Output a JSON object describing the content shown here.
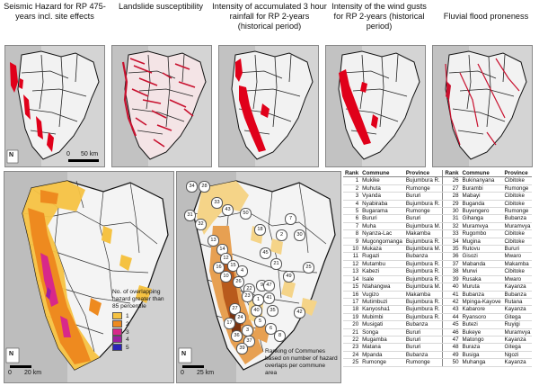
{
  "titles": {
    "seismic": "Seismic Hazard for RP 475-years incl. site effects",
    "landslide": "Landslide susceptibility",
    "rainfall": "Intensity of accumulated 3 hour rainfall for RP 2-years (historical period)",
    "wind": "Intensity of the wind gusts for RP 2-years (historical period)",
    "flood": "Fluvial flood proneness"
  },
  "north_label": "N",
  "scale_top": {
    "zero": "0",
    "label": "50 km"
  },
  "scale_left": {
    "zero": "0",
    "label": "20 km"
  },
  "scale_mid": {
    "zero": "0",
    "label": "25 km"
  },
  "legend": {
    "title": "No. of overlapping hazard greater than 85 percentile",
    "items": [
      {
        "label": "1",
        "color": "#f5c242"
      },
      {
        "label": "2",
        "color": "#ee8a1f"
      },
      {
        "label": "3",
        "color": "#d8288a"
      },
      {
        "label": "4",
        "color": "#9b1fa1"
      },
      {
        "label": "5",
        "color": "#2a24b8"
      }
    ]
  },
  "ranking_caption": "Ranking of Communes based on number of hazard overlaps per commune area",
  "map_labels": [
    "34",
    "28",
    "33",
    "31",
    "32",
    "43",
    "50",
    "13",
    "14",
    "12",
    "16",
    "15",
    "4",
    "10",
    "26",
    "22",
    "9",
    "23",
    "1",
    "47",
    "41",
    "35",
    "40",
    "5",
    "3",
    "6",
    "37",
    "8",
    "27",
    "24",
    "17",
    "42",
    "21",
    "45",
    "2",
    "18",
    "7",
    "30",
    "25",
    "49",
    "39",
    "36"
  ],
  "table": {
    "headers": {
      "rank": "Rank",
      "commune": "Commune",
      "province": "Province"
    },
    "left": [
      {
        "rank": "1",
        "commune": "Mukike",
        "province": "Bujumbura R."
      },
      {
        "rank": "2",
        "commune": "Muhuta",
        "province": "Rumonge"
      },
      {
        "rank": "3",
        "commune": "Vyanda",
        "province": "Bururi"
      },
      {
        "rank": "4",
        "commune": "Nyabiraba",
        "province": "Bujumbura R."
      },
      {
        "rank": "5",
        "commune": "Bugarama",
        "province": "Rumonge"
      },
      {
        "rank": "6",
        "commune": "Bururi",
        "province": "Bururi"
      },
      {
        "rank": "7",
        "commune": "Muha",
        "province": "Bujumbura M."
      },
      {
        "rank": "8",
        "commune": "Nyanza-Lac",
        "province": "Makamba"
      },
      {
        "rank": "9",
        "commune": "Mugongomanga",
        "province": "Bujumbura R."
      },
      {
        "rank": "10",
        "commune": "Mukaza",
        "province": "Bujumbura M."
      },
      {
        "rank": "11",
        "commune": "Rugazi",
        "province": "Bubanza"
      },
      {
        "rank": "12",
        "commune": "Mutambu",
        "province": "Bujumbura R."
      },
      {
        "rank": "13",
        "commune": "Kabezi",
        "province": "Bujumbura R."
      },
      {
        "rank": "14",
        "commune": "Isale",
        "province": "Bujumbura R."
      },
      {
        "rank": "15",
        "commune": "Ntahangwa",
        "province": "Bujumbura M."
      },
      {
        "rank": "16",
        "commune": "Vugizo",
        "province": "Makamba"
      },
      {
        "rank": "17",
        "commune": "Mutimbuzi",
        "province": "Bujumbura R."
      },
      {
        "rank": "18",
        "commune": "Kanyosha1",
        "province": "Bujumbura R."
      },
      {
        "rank": "19",
        "commune": "Mubimbi",
        "province": "Bujumbura R."
      },
      {
        "rank": "20",
        "commune": "Musigati",
        "province": "Bubanza"
      },
      {
        "rank": "21",
        "commune": "Songa",
        "province": "Bururi"
      },
      {
        "rank": "22",
        "commune": "Mugamba",
        "province": "Bururi"
      },
      {
        "rank": "23",
        "commune": "Matana",
        "province": "Bururi"
      },
      {
        "rank": "24",
        "commune": "Mpanda",
        "province": "Bubanza"
      },
      {
        "rank": "25",
        "commune": "Rumonge",
        "province": "Rumonge"
      }
    ],
    "right": [
      {
        "rank": "26",
        "commune": "Bukinanyana",
        "province": "Cibitoke"
      },
      {
        "rank": "27",
        "commune": "Burambi",
        "province": "Rumonge"
      },
      {
        "rank": "28",
        "commune": "Mabayi",
        "province": "Cibitoke"
      },
      {
        "rank": "29",
        "commune": "Buganda",
        "province": "Cibitoke"
      },
      {
        "rank": "30",
        "commune": "Buyengero",
        "province": "Rumonge"
      },
      {
        "rank": "31",
        "commune": "Gihanga",
        "province": "Bubanza"
      },
      {
        "rank": "32",
        "commune": "Muramvya",
        "province": "Muramvya"
      },
      {
        "rank": "33",
        "commune": "Rugombo",
        "province": "Cibitoke"
      },
      {
        "rank": "34",
        "commune": "Mugina",
        "province": "Cibitoke"
      },
      {
        "rank": "35",
        "commune": "Rutovu",
        "province": "Bururi"
      },
      {
        "rank": "36",
        "commune": "Gisozi",
        "province": "Mwaro"
      },
      {
        "rank": "37",
        "commune": "Mabanda",
        "province": "Makamba"
      },
      {
        "rank": "38",
        "commune": "Murwi",
        "province": "Cibitoke"
      },
      {
        "rank": "39",
        "commune": "Rusaka",
        "province": "Mwaro"
      },
      {
        "rank": "40",
        "commune": "Muruta",
        "province": "Kayanza"
      },
      {
        "rank": "41",
        "commune": "Bubanza",
        "province": "Bubanza"
      },
      {
        "rank": "42",
        "commune": "Mpinga-Kayove",
        "province": "Rutana"
      },
      {
        "rank": "43",
        "commune": "Kabarore",
        "province": "Kayanza"
      },
      {
        "rank": "44",
        "commune": "Ryansoro",
        "province": "Gitega"
      },
      {
        "rank": "45",
        "commune": "Butezi",
        "province": "Ruyigi"
      },
      {
        "rank": "46",
        "commune": "Bukeye",
        "province": "Muramvya"
      },
      {
        "rank": "47",
        "commune": "Matongo",
        "province": "Kayanza"
      },
      {
        "rank": "48",
        "commune": "Buraza",
        "province": "Gitega"
      },
      {
        "rank": "49",
        "commune": "Busiga",
        "province": "Ngozi"
      },
      {
        "rank": "50",
        "commune": "Muhanga",
        "province": "Kayanza"
      }
    ]
  }
}
